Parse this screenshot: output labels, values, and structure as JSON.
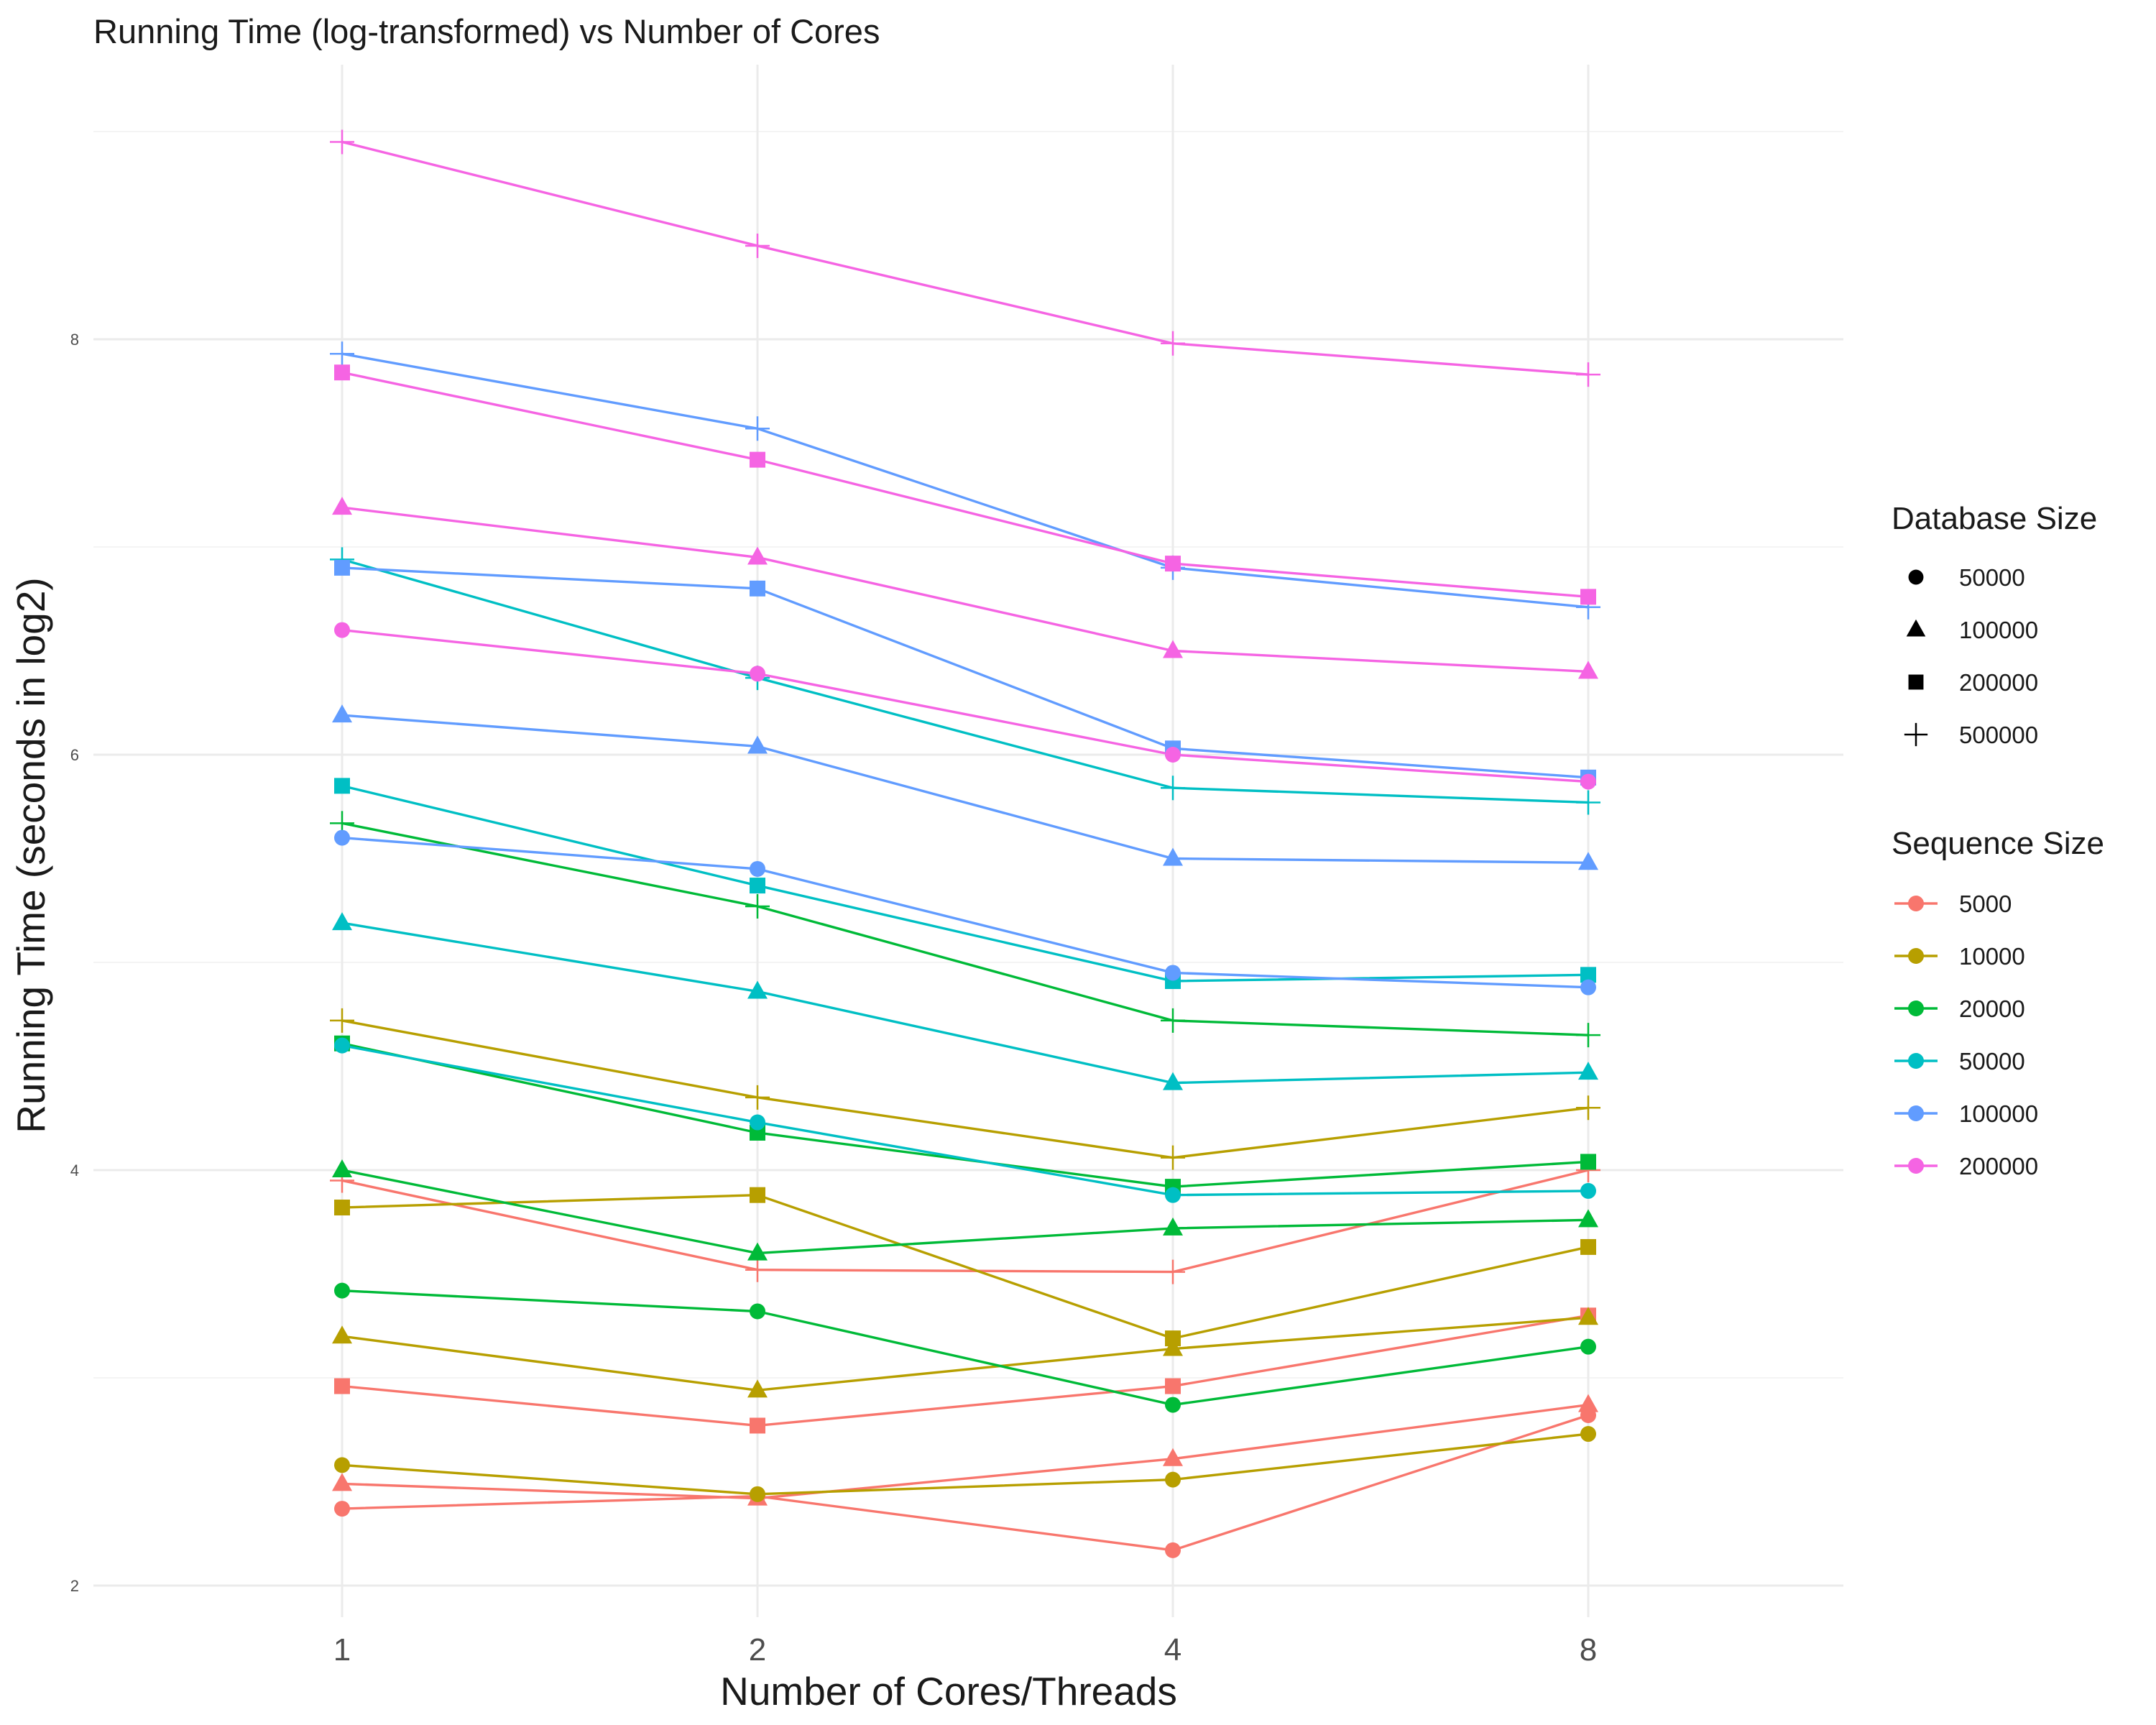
{
  "chart_data": {
    "type": "line",
    "title": "Running Time (log-transformed) vs Number of Cores",
    "xlabel": "Number of Cores/Threads",
    "ylabel": "Running Time (seconds in log2)",
    "x": [
      1,
      2,
      4,
      8
    ],
    "x_tick_labels": [
      "1",
      "2",
      "4",
      "8"
    ],
    "y_ticks": [
      2,
      4,
      6,
      8
    ],
    "ylim": [
      1.82,
      9.35
    ],
    "grid": true,
    "legend_position": "right",
    "legend": {
      "shape_title": "Database Size",
      "color_title": "Sequence Size"
    },
    "database_sizes": [
      {
        "label": "50000",
        "shape": "circle"
      },
      {
        "label": "100000",
        "shape": "triangle"
      },
      {
        "label": "200000",
        "shape": "square"
      },
      {
        "label": "500000",
        "shape": "plus"
      }
    ],
    "sequence_sizes": [
      {
        "label": "5000",
        "color": "#F8766D"
      },
      {
        "label": "10000",
        "color": "#B79F00"
      },
      {
        "label": "20000",
        "color": "#00BA38"
      },
      {
        "label": "50000",
        "color": "#00BFC4"
      },
      {
        "label": "100000",
        "color": "#619CFF"
      },
      {
        "label": "200000",
        "color": "#F564E3"
      }
    ],
    "series": [
      {
        "sequence_size": "5000",
        "database_size": "50000",
        "values": [
          2.37,
          2.43,
          2.17,
          2.82
        ]
      },
      {
        "sequence_size": "5000",
        "database_size": "100000",
        "values": [
          2.49,
          2.42,
          2.61,
          2.87
        ]
      },
      {
        "sequence_size": "5000",
        "database_size": "200000",
        "values": [
          2.96,
          2.77,
          2.96,
          3.3
        ]
      },
      {
        "sequence_size": "5000",
        "database_size": "500000",
        "values": [
          3.95,
          3.52,
          3.51,
          4.0
        ]
      },
      {
        "sequence_size": "10000",
        "database_size": "50000",
        "values": [
          2.58,
          2.44,
          2.51,
          2.73
        ]
      },
      {
        "sequence_size": "10000",
        "database_size": "100000",
        "values": [
          3.2,
          2.94,
          3.14,
          3.29
        ]
      },
      {
        "sequence_size": "10000",
        "database_size": "200000",
        "values": [
          3.82,
          3.88,
          3.19,
          3.63
        ]
      },
      {
        "sequence_size": "10000",
        "database_size": "500000",
        "values": [
          4.72,
          4.35,
          4.06,
          4.3
        ]
      },
      {
        "sequence_size": "20000",
        "database_size": "50000",
        "values": [
          3.42,
          3.32,
          2.87,
          3.15
        ]
      },
      {
        "sequence_size": "20000",
        "database_size": "100000",
        "values": [
          4.0,
          3.6,
          3.72,
          3.76
        ]
      },
      {
        "sequence_size": "20000",
        "database_size": "200000",
        "values": [
          4.61,
          4.18,
          3.92,
          4.04
        ]
      },
      {
        "sequence_size": "20000",
        "database_size": "500000",
        "values": [
          5.67,
          5.27,
          4.72,
          4.65
        ]
      },
      {
        "sequence_size": "50000",
        "database_size": "50000",
        "values": [
          4.6,
          4.23,
          3.88,
          3.9
        ]
      },
      {
        "sequence_size": "50000",
        "database_size": "100000",
        "values": [
          5.19,
          4.86,
          4.42,
          4.47
        ]
      },
      {
        "sequence_size": "50000",
        "database_size": "200000",
        "values": [
          5.85,
          5.37,
          4.91,
          4.94
        ]
      },
      {
        "sequence_size": "50000",
        "database_size": "500000",
        "values": [
          6.94,
          6.37,
          5.84,
          5.77
        ]
      },
      {
        "sequence_size": "100000",
        "database_size": "50000",
        "values": [
          5.6,
          5.45,
          4.95,
          4.88
        ]
      },
      {
        "sequence_size": "100000",
        "database_size": "100000",
        "values": [
          6.19,
          6.04,
          5.5,
          5.48
        ]
      },
      {
        "sequence_size": "100000",
        "database_size": "200000",
        "values": [
          6.9,
          6.8,
          6.03,
          5.89
        ]
      },
      {
        "sequence_size": "100000",
        "database_size": "500000",
        "values": [
          7.93,
          7.57,
          6.9,
          6.71
        ]
      },
      {
        "sequence_size": "200000",
        "database_size": "50000",
        "values": [
          6.6,
          6.39,
          6.0,
          5.87
        ]
      },
      {
        "sequence_size": "200000",
        "database_size": "100000",
        "values": [
          7.19,
          6.95,
          6.5,
          6.4
        ]
      },
      {
        "sequence_size": "200000",
        "database_size": "200000",
        "values": [
          7.84,
          7.42,
          6.92,
          6.76
        ]
      },
      {
        "sequence_size": "200000",
        "database_size": "500000",
        "values": [
          8.95,
          8.45,
          7.98,
          7.83
        ]
      }
    ]
  }
}
